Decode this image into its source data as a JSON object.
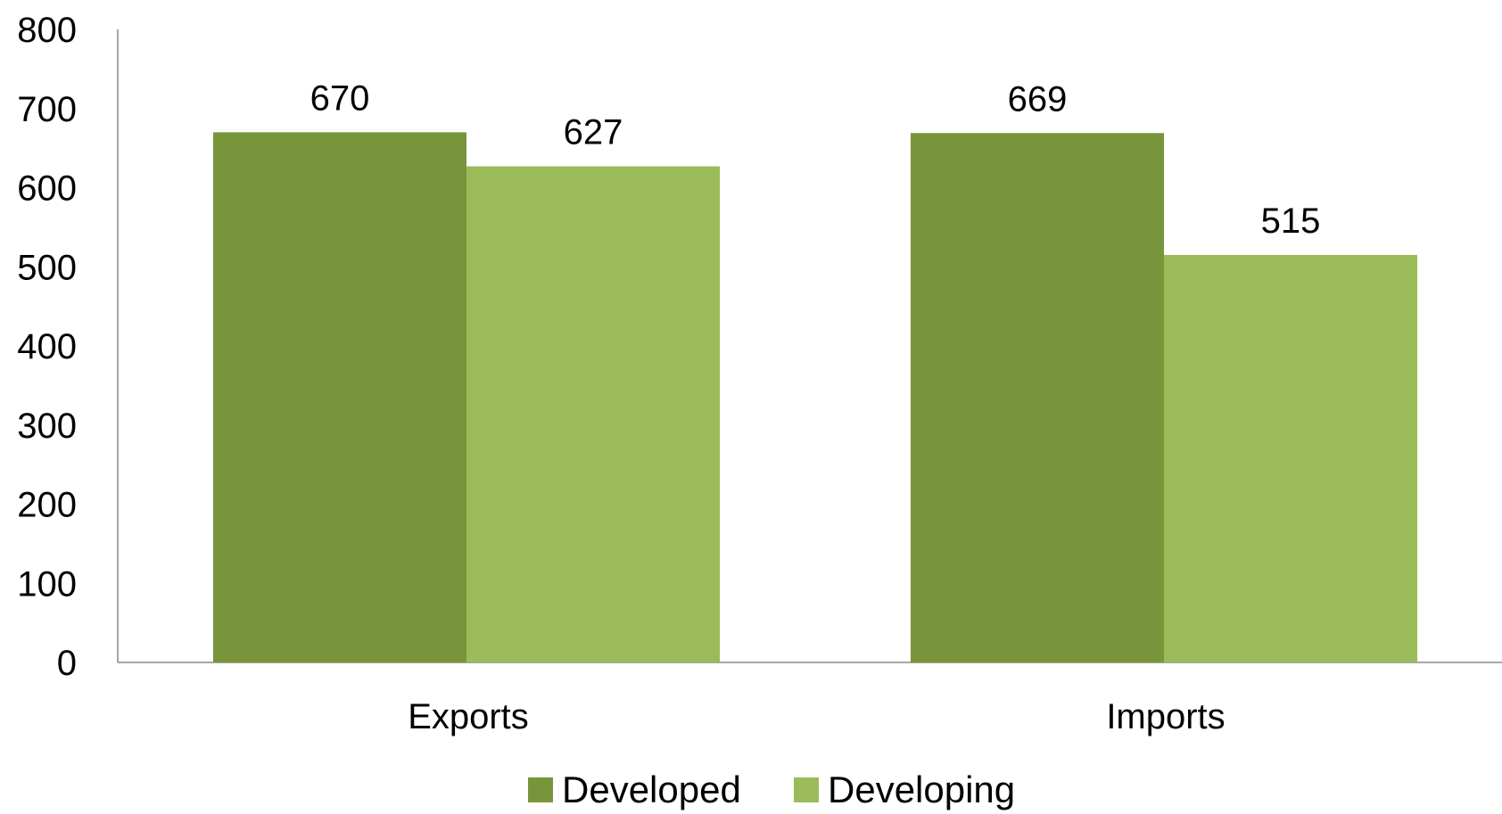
{
  "chart_data": {
    "type": "bar",
    "categories": [
      "Exports",
      "Imports"
    ],
    "series": [
      {
        "name": "Developed",
        "values": [
          670,
          669
        ],
        "color": "#79953b"
      },
      {
        "name": "Developing",
        "values": [
          627,
          515
        ],
        "color": "#9bbb59"
      }
    ],
    "title": "",
    "xlabel": "",
    "ylabel": "",
    "ylim": [
      0,
      800
    ],
    "yticks": [
      0,
      100,
      200,
      300,
      400,
      500,
      600,
      700,
      800
    ],
    "grid": false,
    "data_labels": true,
    "legend_position": "bottom",
    "axis_color": "#888888"
  }
}
